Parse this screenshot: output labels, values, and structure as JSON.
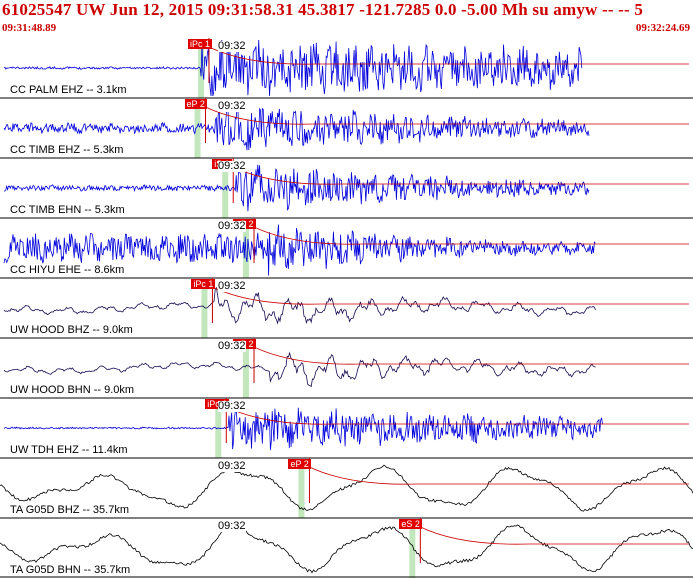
{
  "header": {
    "title": "61025547 UW Jun 12, 2015 09:31:58.31   45.3817 -121.7285  0.0 -5.00 Mh su amyw -- --   5",
    "start_time": "09:31:48.89",
    "end_time": "09:32:24.69"
  },
  "colors": {
    "title": "#cc0000",
    "pick_flag": "#e00000",
    "pick_window": "#b8e3b0",
    "trace_blue": "#0000dd",
    "trace_navy": "#1a0a55",
    "trace_black": "#000000",
    "divider": "#000000"
  },
  "minute_tick_label": "09:32",
  "traces": [
    {
      "label": "CC PALM EHZ -- 3.1km",
      "color": "trace_blue",
      "style": "spiky",
      "amp": 0.42,
      "onset": 0.29,
      "end": 0.84,
      "pre": 0.04,
      "decay": 0.35,
      "seed": 11,
      "picks": [
        {
          "label": "iPc 1",
          "pos": 0.29
        }
      ]
    },
    {
      "label": "CC TIMB EHZ -- 5.3km",
      "color": "trace_blue",
      "style": "spiky",
      "amp": 0.38,
      "onset": 0.31,
      "end": 0.85,
      "pre": 0.2,
      "decay": 1.2,
      "seed": 23,
      "picks": [
        {
          "label": "eP 2",
          "pos": 0.285
        }
      ]
    },
    {
      "label": "CC TIMB EHN -- 5.3km",
      "color": "trace_blue",
      "style": "spiky",
      "amp": 0.36,
      "onset": 0.34,
      "end": 0.85,
      "pre": 0.12,
      "decay": 1.3,
      "seed": 37,
      "picks": [
        {
          "label": "iS 1",
          "pos": 0.325
        }
      ]
    },
    {
      "label": "CC HIYU EHE -- 8.6km",
      "color": "trace_blue",
      "style": "spiky",
      "amp": 0.38,
      "onset": 0.38,
      "end": 0.86,
      "pre": 0.55,
      "decay": 1.6,
      "seed": 41,
      "picks": [
        {
          "label": "eS 2",
          "pos": 0.355
        }
      ]
    },
    {
      "label": "UW HOOD BHZ -- 9.0km",
      "color": "trace_navy",
      "style": "broad",
      "amp": 0.32,
      "onset": 0.31,
      "end": 0.86,
      "pre": 0.22,
      "decay": 1.4,
      "seed": 53,
      "picks": [
        {
          "label": "iPc 1",
          "pos": 0.295
        }
      ]
    },
    {
      "label": "UW HOOD BHN -- 9.0km",
      "color": "trace_navy",
      "style": "broad",
      "amp": 0.3,
      "onset": 0.39,
      "end": 0.86,
      "pre": 0.2,
      "decay": 1.2,
      "seed": 67,
      "picks": [
        {
          "label": "eS 2",
          "pos": 0.355
        }
      ]
    },
    {
      "label": "UW TDH EHZ -- 11.4km",
      "color": "trace_blue",
      "style": "spiky",
      "amp": 0.34,
      "onset": 0.33,
      "end": 0.87,
      "pre": 0.04,
      "decay": 0.8,
      "seed": 79,
      "picks": [
        {
          "label": "iPc 1",
          "pos": 0.315
        }
      ]
    },
    {
      "label": "TA G05D BHZ -- 35.7km",
      "color": "trace_black",
      "style": "long",
      "amp": 0.4,
      "onset": 0.2,
      "end": 1.0,
      "pre": 1.0,
      "decay": 2.0,
      "seed": 83,
      "picks": [
        {
          "label": "eP 2",
          "pos": 0.435
        }
      ]
    },
    {
      "label": "TA G05D BHN -- 35.7km",
      "color": "trace_black",
      "style": "long",
      "amp": 0.42,
      "onset": 0.2,
      "end": 1.0,
      "pre": 1.0,
      "decay": 2.0,
      "seed": 97,
      "picks": [
        {
          "label": "eS 2",
          "pos": 0.595
        }
      ]
    }
  ]
}
